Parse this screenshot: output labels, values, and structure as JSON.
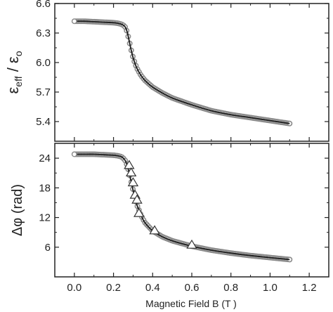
{
  "chart_data": [
    {
      "type": "scatter",
      "panel": "top",
      "xlabel": "",
      "ylabel": "ε_eff / ε_o",
      "ylabel_main": "ε",
      "ylabel_sub": "eff",
      "ylabel_div": " / ε",
      "ylabel_sub2": "o",
      "xlim": [
        -0.1,
        1.3
      ],
      "ylim": [
        5.2,
        6.6
      ],
      "yticks": [
        5.4,
        5.7,
        6.0,
        6.3,
        6.6
      ],
      "ytick_labels": [
        "5.4",
        "5.7",
        "6.0",
        "6.3",
        "6.6"
      ],
      "grid": false,
      "series": [
        {
          "style": "open-circles-gray-with-black-fit-line",
          "x": [
            0.0,
            0.05,
            0.1,
            0.15,
            0.2,
            0.22,
            0.24,
            0.25,
            0.26,
            0.27,
            0.28,
            0.29,
            0.3,
            0.31,
            0.32,
            0.34,
            0.36,
            0.4,
            0.45,
            0.5,
            0.6,
            0.7,
            0.8,
            0.9,
            1.0,
            1.1
          ],
          "y": [
            6.42,
            6.42,
            6.415,
            6.41,
            6.405,
            6.4,
            6.39,
            6.38,
            6.36,
            6.31,
            6.22,
            6.13,
            6.05,
            5.99,
            5.94,
            5.87,
            5.82,
            5.75,
            5.69,
            5.64,
            5.57,
            5.51,
            5.47,
            5.44,
            5.41,
            5.38
          ]
        }
      ]
    },
    {
      "type": "scatter",
      "panel": "bottom",
      "xlabel": "Magnetic Field B (T )",
      "ylabel": "Δφ (rad)",
      "xlim": [
        -0.1,
        1.3
      ],
      "ylim": [
        0,
        27
      ],
      "xticks": [
        0.0,
        0.2,
        0.4,
        0.6,
        0.8,
        1.0,
        1.2
      ],
      "xtick_labels": [
        "0.0",
        "0.2",
        "0.4",
        "0.6",
        "0.8",
        "1.0",
        "1.2"
      ],
      "yticks": [
        6,
        12,
        18,
        24
      ],
      "ytick_labels": [
        "6",
        "12",
        "18",
        "24"
      ],
      "grid": false,
      "series": [
        {
          "style": "open-circles-gray-with-black-fit-line",
          "x": [
            0.0,
            0.05,
            0.1,
            0.15,
            0.2,
            0.22,
            0.24,
            0.25,
            0.26,
            0.27,
            0.28,
            0.29,
            0.3,
            0.31,
            0.32,
            0.34,
            0.36,
            0.4,
            0.45,
            0.5,
            0.6,
            0.7,
            0.8,
            0.9,
            1.0,
            1.1
          ],
          "y": [
            24.8,
            24.8,
            24.8,
            24.7,
            24.6,
            24.5,
            24.3,
            24.0,
            23.5,
            22.5,
            21.0,
            19.3,
            17.5,
            15.8,
            14.5,
            12.5,
            11.0,
            9.3,
            8.1,
            7.3,
            6.2,
            5.4,
            4.8,
            4.3,
            3.9,
            3.5
          ]
        },
        {
          "style": "open-triangles",
          "x": [
            0.28,
            0.29,
            0.3,
            0.31,
            0.32,
            0.33,
            0.41,
            0.6
          ],
          "y": [
            22.5,
            21.0,
            19.0,
            16.5,
            15.5,
            12.8,
            9.3,
            6.4
          ]
        }
      ]
    }
  ],
  "colors": {
    "axis": "#222222",
    "marker_stroke": "#8a8a8a",
    "marker_fill": "#ffffff",
    "fit_line": "#1a1a1a",
    "triangle_stroke": "#333333"
  }
}
